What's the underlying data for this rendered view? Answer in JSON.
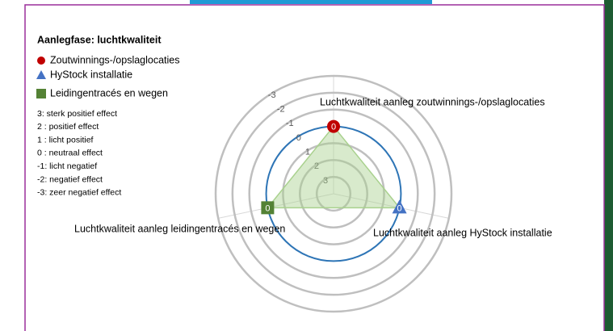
{
  "chart_data": {
    "type": "radar",
    "title": "Aanlegfase: luchtkwaliteit",
    "categories": [
      "Luchtkwaliteit aanleg zoutwinnings-/opslaglocaties",
      "Luchtkwaliteit aanleg HyStock installatie",
      "Luchtkwaliteit aanleg leidingentracés en wegen"
    ],
    "values": [
      0,
      0,
      0
    ],
    "markers": [
      {
        "name": "Zoutwinnings-/opslaglocaties",
        "color": "#c00000",
        "shape": "circle"
      },
      {
        "name": "HyStock installatie",
        "color": "#4472c4",
        "shape": "triangle"
      },
      {
        "name": "Leidingentracés en wegen",
        "color": "#548235",
        "shape": "square"
      }
    ],
    "area_color": "#a9d18e",
    "rlim": [
      4,
      -3
    ],
    "rticks": [
      -3,
      -2,
      -1,
      0,
      1,
      2,
      3
    ],
    "ring_color": "#bfbfbf",
    "zero_ring_color": "#2e75b6",
    "notes": [
      "3: sterk positief effect",
      "2 : positief effect",
      "1 : licht positief",
      "0 : neutraal effect",
      "-1: licht negatief",
      "-2: negatief effect",
      "-3: zeer negatief effect"
    ]
  }
}
